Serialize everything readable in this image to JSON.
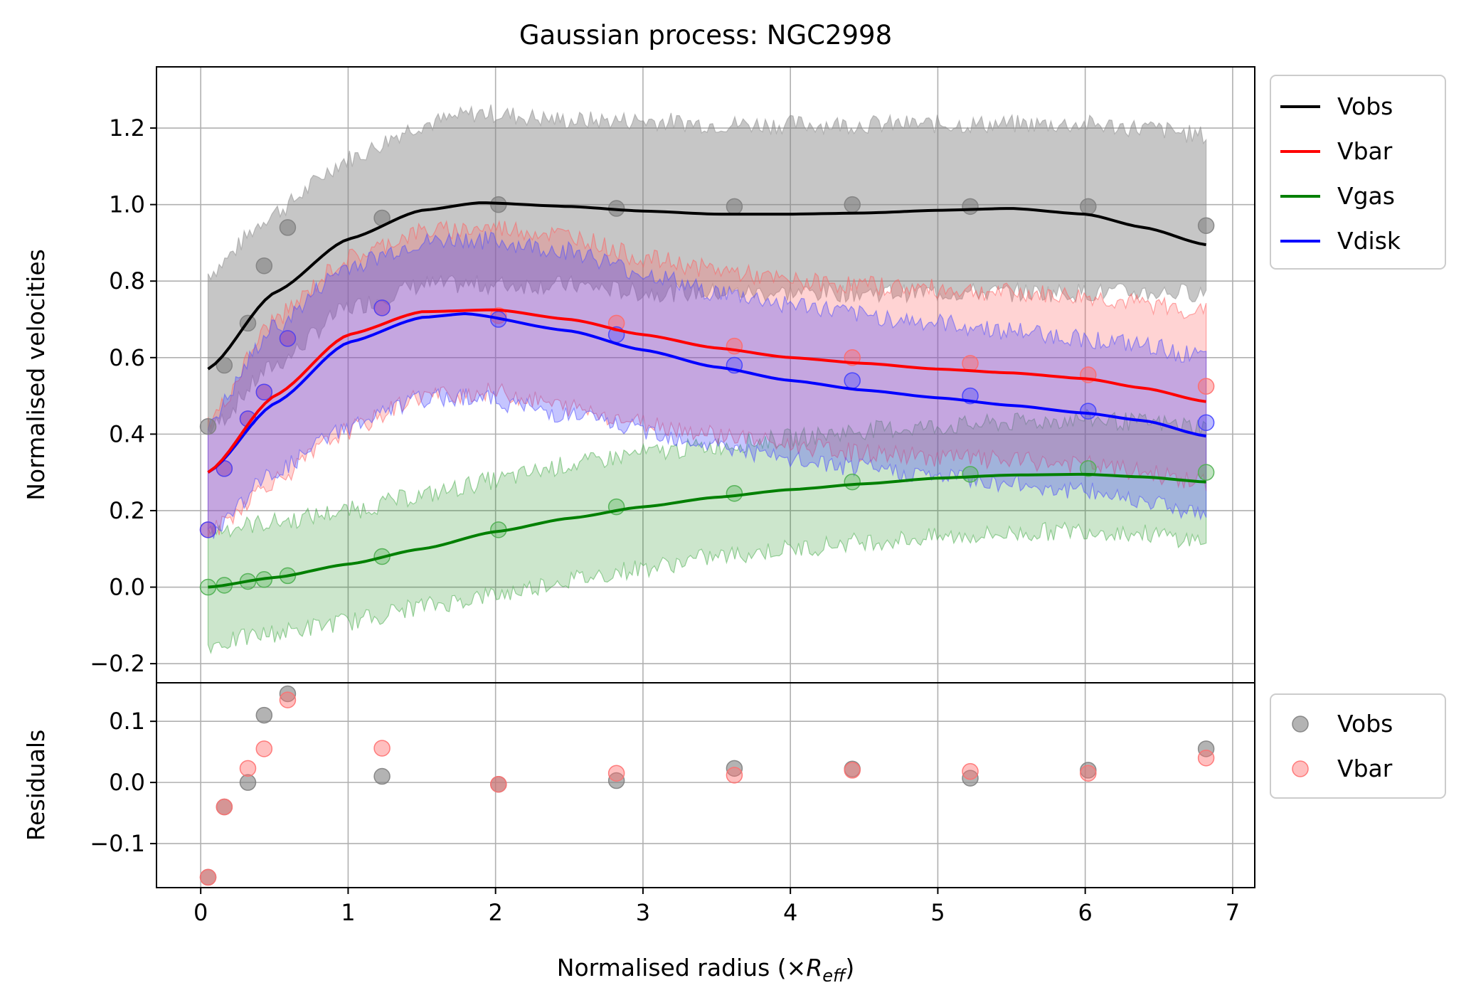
{
  "title": "Gaussian process: NGC2998",
  "colors": {
    "Vobs": "#000000",
    "Vbar": "#ff0000",
    "Vgas": "#008000",
    "Vdisk": "#0000ff",
    "Vobs_marker": "#808080",
    "Vbar_marker": "#ff8080"
  },
  "chart_data": [
    {
      "type": "line",
      "title": "Gaussian process: NGC2998",
      "xlabel": "Normalised radius (×R_eff)",
      "ylabel": "Normalised velocities",
      "xlim": [
        -0.3,
        7.15
      ],
      "ylim": [
        -0.25,
        1.36
      ],
      "grid": true,
      "legend_position": "outside-right",
      "x_ticks": [
        0,
        1,
        2,
        3,
        4,
        5,
        6,
        7
      ],
      "y_ticks": [
        -0.2,
        0.0,
        0.2,
        0.4,
        0.6,
        0.8,
        1.0,
        1.2
      ],
      "y_tick_labels": [
        "−0.2",
        "0.0",
        "0.2",
        "0.4",
        "0.6",
        "0.8",
        "1.0",
        "1.2"
      ],
      "series": [
        {
          "name": "Vobs",
          "fit_x": [
            0.05,
            0.5,
            1.0,
            1.5,
            1.9,
            2.5,
            3.0,
            3.5,
            4.0,
            4.5,
            5.0,
            5.5,
            6.0,
            6.4,
            6.82
          ],
          "fit_y": [
            0.57,
            0.77,
            0.91,
            0.985,
            1.005,
            0.995,
            0.983,
            0.975,
            0.975,
            0.978,
            0.985,
            0.99,
            0.975,
            0.94,
            0.895
          ],
          "band_lower": [
            0.41,
            0.58,
            0.73,
            0.79,
            0.79,
            0.79,
            0.77,
            0.77,
            0.77,
            0.77,
            0.77,
            0.77,
            0.77,
            0.77,
            0.77
          ],
          "band_upper": [
            0.82,
            0.98,
            1.12,
            1.21,
            1.24,
            1.22,
            1.22,
            1.21,
            1.21,
            1.21,
            1.21,
            1.21,
            1.21,
            1.2,
            1.18
          ],
          "points_x": [
            0.05,
            0.16,
            0.32,
            0.43,
            0.59,
            1.23,
            2.02,
            2.82,
            3.62,
            4.42,
            5.22,
            6.02,
            6.82
          ],
          "points_y": [
            0.42,
            0.58,
            0.69,
            0.84,
            0.94,
            0.965,
            1.0,
            0.99,
            0.995,
            1.0,
            0.995,
            0.995,
            0.945
          ]
        },
        {
          "name": "Vbar",
          "fit_x": [
            0.05,
            0.5,
            1.0,
            1.5,
            2.0,
            2.5,
            3.0,
            3.5,
            4.0,
            4.5,
            5.0,
            5.5,
            6.0,
            6.4,
            6.82
          ],
          "fit_y": [
            0.3,
            0.5,
            0.66,
            0.72,
            0.725,
            0.7,
            0.66,
            0.625,
            0.6,
            0.585,
            0.57,
            0.56,
            0.545,
            0.52,
            0.485
          ],
          "band_lower": [
            0.14,
            0.28,
            0.41,
            0.5,
            0.51,
            0.47,
            0.43,
            0.4,
            0.37,
            0.35,
            0.34,
            0.33,
            0.32,
            0.3,
            0.27
          ],
          "band_upper": [
            0.43,
            0.7,
            0.86,
            0.93,
            0.94,
            0.92,
            0.86,
            0.83,
            0.8,
            0.79,
            0.78,
            0.77,
            0.76,
            0.74,
            0.72
          ],
          "points_x": [
            0.05,
            0.16,
            0.32,
            0.43,
            0.59,
            1.23,
            2.02,
            2.82,
            3.62,
            4.42,
            5.22,
            6.02,
            6.82
          ],
          "points_y": [
            0.15,
            0.31,
            0.44,
            0.51,
            0.65,
            0.73,
            0.71,
            0.69,
            0.63,
            0.6,
            0.585,
            0.555,
            0.525
          ]
        },
        {
          "name": "Vgas",
          "fit_x": [
            0.05,
            0.5,
            1.0,
            1.5,
            2.0,
            2.5,
            3.0,
            3.5,
            4.0,
            4.5,
            5.0,
            5.5,
            6.0,
            6.4,
            6.82
          ],
          "fit_y": [
            0.0,
            0.025,
            0.06,
            0.1,
            0.145,
            0.18,
            0.21,
            0.235,
            0.255,
            0.27,
            0.285,
            0.293,
            0.295,
            0.288,
            0.275
          ],
          "band_lower": [
            -0.15,
            -0.12,
            -0.09,
            -0.05,
            -0.02,
            0.02,
            0.05,
            0.08,
            0.1,
            0.12,
            0.13,
            0.14,
            0.15,
            0.14,
            0.12
          ],
          "band_upper": [
            0.15,
            0.17,
            0.2,
            0.24,
            0.28,
            0.32,
            0.35,
            0.37,
            0.39,
            0.41,
            0.42,
            0.43,
            0.44,
            0.43,
            0.42
          ],
          "points_x": [
            0.05,
            0.16,
            0.32,
            0.43,
            0.59,
            1.23,
            2.02,
            2.82,
            3.62,
            4.42,
            5.22,
            6.02,
            6.82
          ],
          "points_y": [
            0.0,
            0.005,
            0.015,
            0.02,
            0.03,
            0.08,
            0.15,
            0.21,
            0.245,
            0.275,
            0.295,
            0.31,
            0.3
          ]
        },
        {
          "name": "Vdisk",
          "fit_x": [
            0.05,
            0.5,
            1.0,
            1.5,
            1.8,
            2.5,
            3.0,
            3.5,
            4.0,
            4.5,
            5.0,
            5.5,
            6.0,
            6.4,
            6.82
          ],
          "fit_y": [
            0.3,
            0.48,
            0.64,
            0.705,
            0.715,
            0.67,
            0.62,
            0.575,
            0.54,
            0.515,
            0.495,
            0.475,
            0.455,
            0.435,
            0.395
          ],
          "band_lower": [
            0.14,
            0.3,
            0.42,
            0.49,
            0.5,
            0.45,
            0.41,
            0.37,
            0.33,
            0.31,
            0.29,
            0.27,
            0.25,
            0.23,
            0.19
          ],
          "band_upper": [
            0.43,
            0.68,
            0.84,
            0.9,
            0.91,
            0.88,
            0.82,
            0.77,
            0.74,
            0.71,
            0.69,
            0.67,
            0.65,
            0.63,
            0.6
          ],
          "points_x": [
            0.05,
            0.16,
            0.32,
            0.43,
            0.59,
            1.23,
            2.02,
            2.82,
            3.62,
            4.42,
            5.22,
            6.02,
            6.82
          ],
          "points_y": [
            0.15,
            0.31,
            0.44,
            0.51,
            0.65,
            0.73,
            0.7,
            0.66,
            0.58,
            0.54,
            0.5,
            0.46,
            0.43
          ]
        }
      ]
    },
    {
      "type": "scatter",
      "ylabel": "Residuals",
      "xlabel": "Normalised radius (×R_eff)",
      "xlim": [
        -0.3,
        7.15
      ],
      "ylim": [
        -0.172,
        0.163
      ],
      "grid": true,
      "legend_position": "outside-right",
      "y_ticks": [
        -0.1,
        0.0,
        0.1
      ],
      "y_tick_labels": [
        "−0.1",
        "0.0",
        "0.1"
      ],
      "series": [
        {
          "name": "Vobs",
          "x": [
            0.05,
            0.16,
            0.32,
            0.43,
            0.59,
            1.23,
            2.02,
            2.82,
            3.62,
            4.42,
            5.22,
            6.02,
            6.82
          ],
          "y": [
            -0.155,
            -0.04,
            0.0,
            0.11,
            0.145,
            0.01,
            -0.003,
            0.003,
            0.023,
            0.022,
            0.007,
            0.02,
            0.055
          ]
        },
        {
          "name": "Vbar",
          "x": [
            0.05,
            0.16,
            0.32,
            0.43,
            0.59,
            1.23,
            2.02,
            2.82,
            3.62,
            4.42,
            5.22,
            6.02,
            6.82
          ],
          "y": [
            -0.155,
            -0.04,
            0.023,
            0.055,
            0.135,
            0.056,
            -0.003,
            0.015,
            0.012,
            0.02,
            0.018,
            0.015,
            0.04
          ]
        }
      ]
    }
  ],
  "legend_top": [
    "Vobs",
    "Vbar",
    "Vgas",
    "Vdisk"
  ],
  "legend_bottom": [
    "Vobs",
    "Vbar"
  ]
}
